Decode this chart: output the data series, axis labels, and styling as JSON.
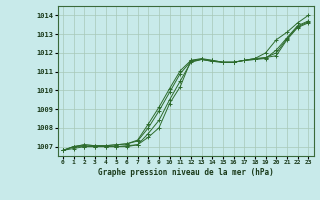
{
  "title": "Graphe pression niveau de la mer (hPa)",
  "bg_color": "#c8eaea",
  "grid_color": "#a8c8b8",
  "line_color": "#2d6b2d",
  "x_labels": [
    "0",
    "1",
    "2",
    "3",
    "4",
    "5",
    "6",
    "7",
    "8",
    "9",
    "10",
    "11",
    "12",
    "13",
    "14",
    "15",
    "16",
    "17",
    "18",
    "19",
    "20",
    "21",
    "22",
    "23"
  ],
  "ylim": [
    1006.5,
    1014.5
  ],
  "yticks": [
    1007,
    1008,
    1009,
    1010,
    1011,
    1012,
    1013,
    1014
  ],
  "series": [
    [
      1006.8,
      1006.9,
      1007.0,
      1007.0,
      1007.0,
      1007.0,
      1007.0,
      1007.1,
      1007.5,
      1008.0,
      1009.3,
      1010.2,
      1011.6,
      1011.7,
      1011.6,
      1011.5,
      1011.5,
      1011.6,
      1011.7,
      1012.0,
      1012.7,
      1013.1,
      1013.6,
      1014.0
    ],
    [
      1006.8,
      1007.0,
      1007.0,
      1007.0,
      1007.0,
      1007.0,
      1007.05,
      1007.1,
      1007.7,
      1008.4,
      1009.5,
      1010.5,
      1011.5,
      1011.65,
      1011.55,
      1011.5,
      1011.5,
      1011.6,
      1011.7,
      1011.75,
      1011.85,
      1012.7,
      1013.35,
      1013.6
    ],
    [
      1006.8,
      1007.0,
      1007.1,
      1007.05,
      1007.05,
      1007.1,
      1007.15,
      1007.3,
      1008.0,
      1008.9,
      1009.9,
      1010.9,
      1011.55,
      1011.65,
      1011.55,
      1011.5,
      1011.5,
      1011.6,
      1011.65,
      1011.7,
      1012.15,
      1012.8,
      1013.45,
      1013.7
    ],
    [
      1006.8,
      1007.0,
      1007.1,
      1007.05,
      1007.05,
      1007.1,
      1007.15,
      1007.35,
      1008.2,
      1009.1,
      1010.1,
      1011.05,
      1011.6,
      1011.65,
      1011.6,
      1011.5,
      1011.5,
      1011.6,
      1011.65,
      1011.75,
      1012.0,
      1012.75,
      1013.4,
      1013.65
    ]
  ]
}
